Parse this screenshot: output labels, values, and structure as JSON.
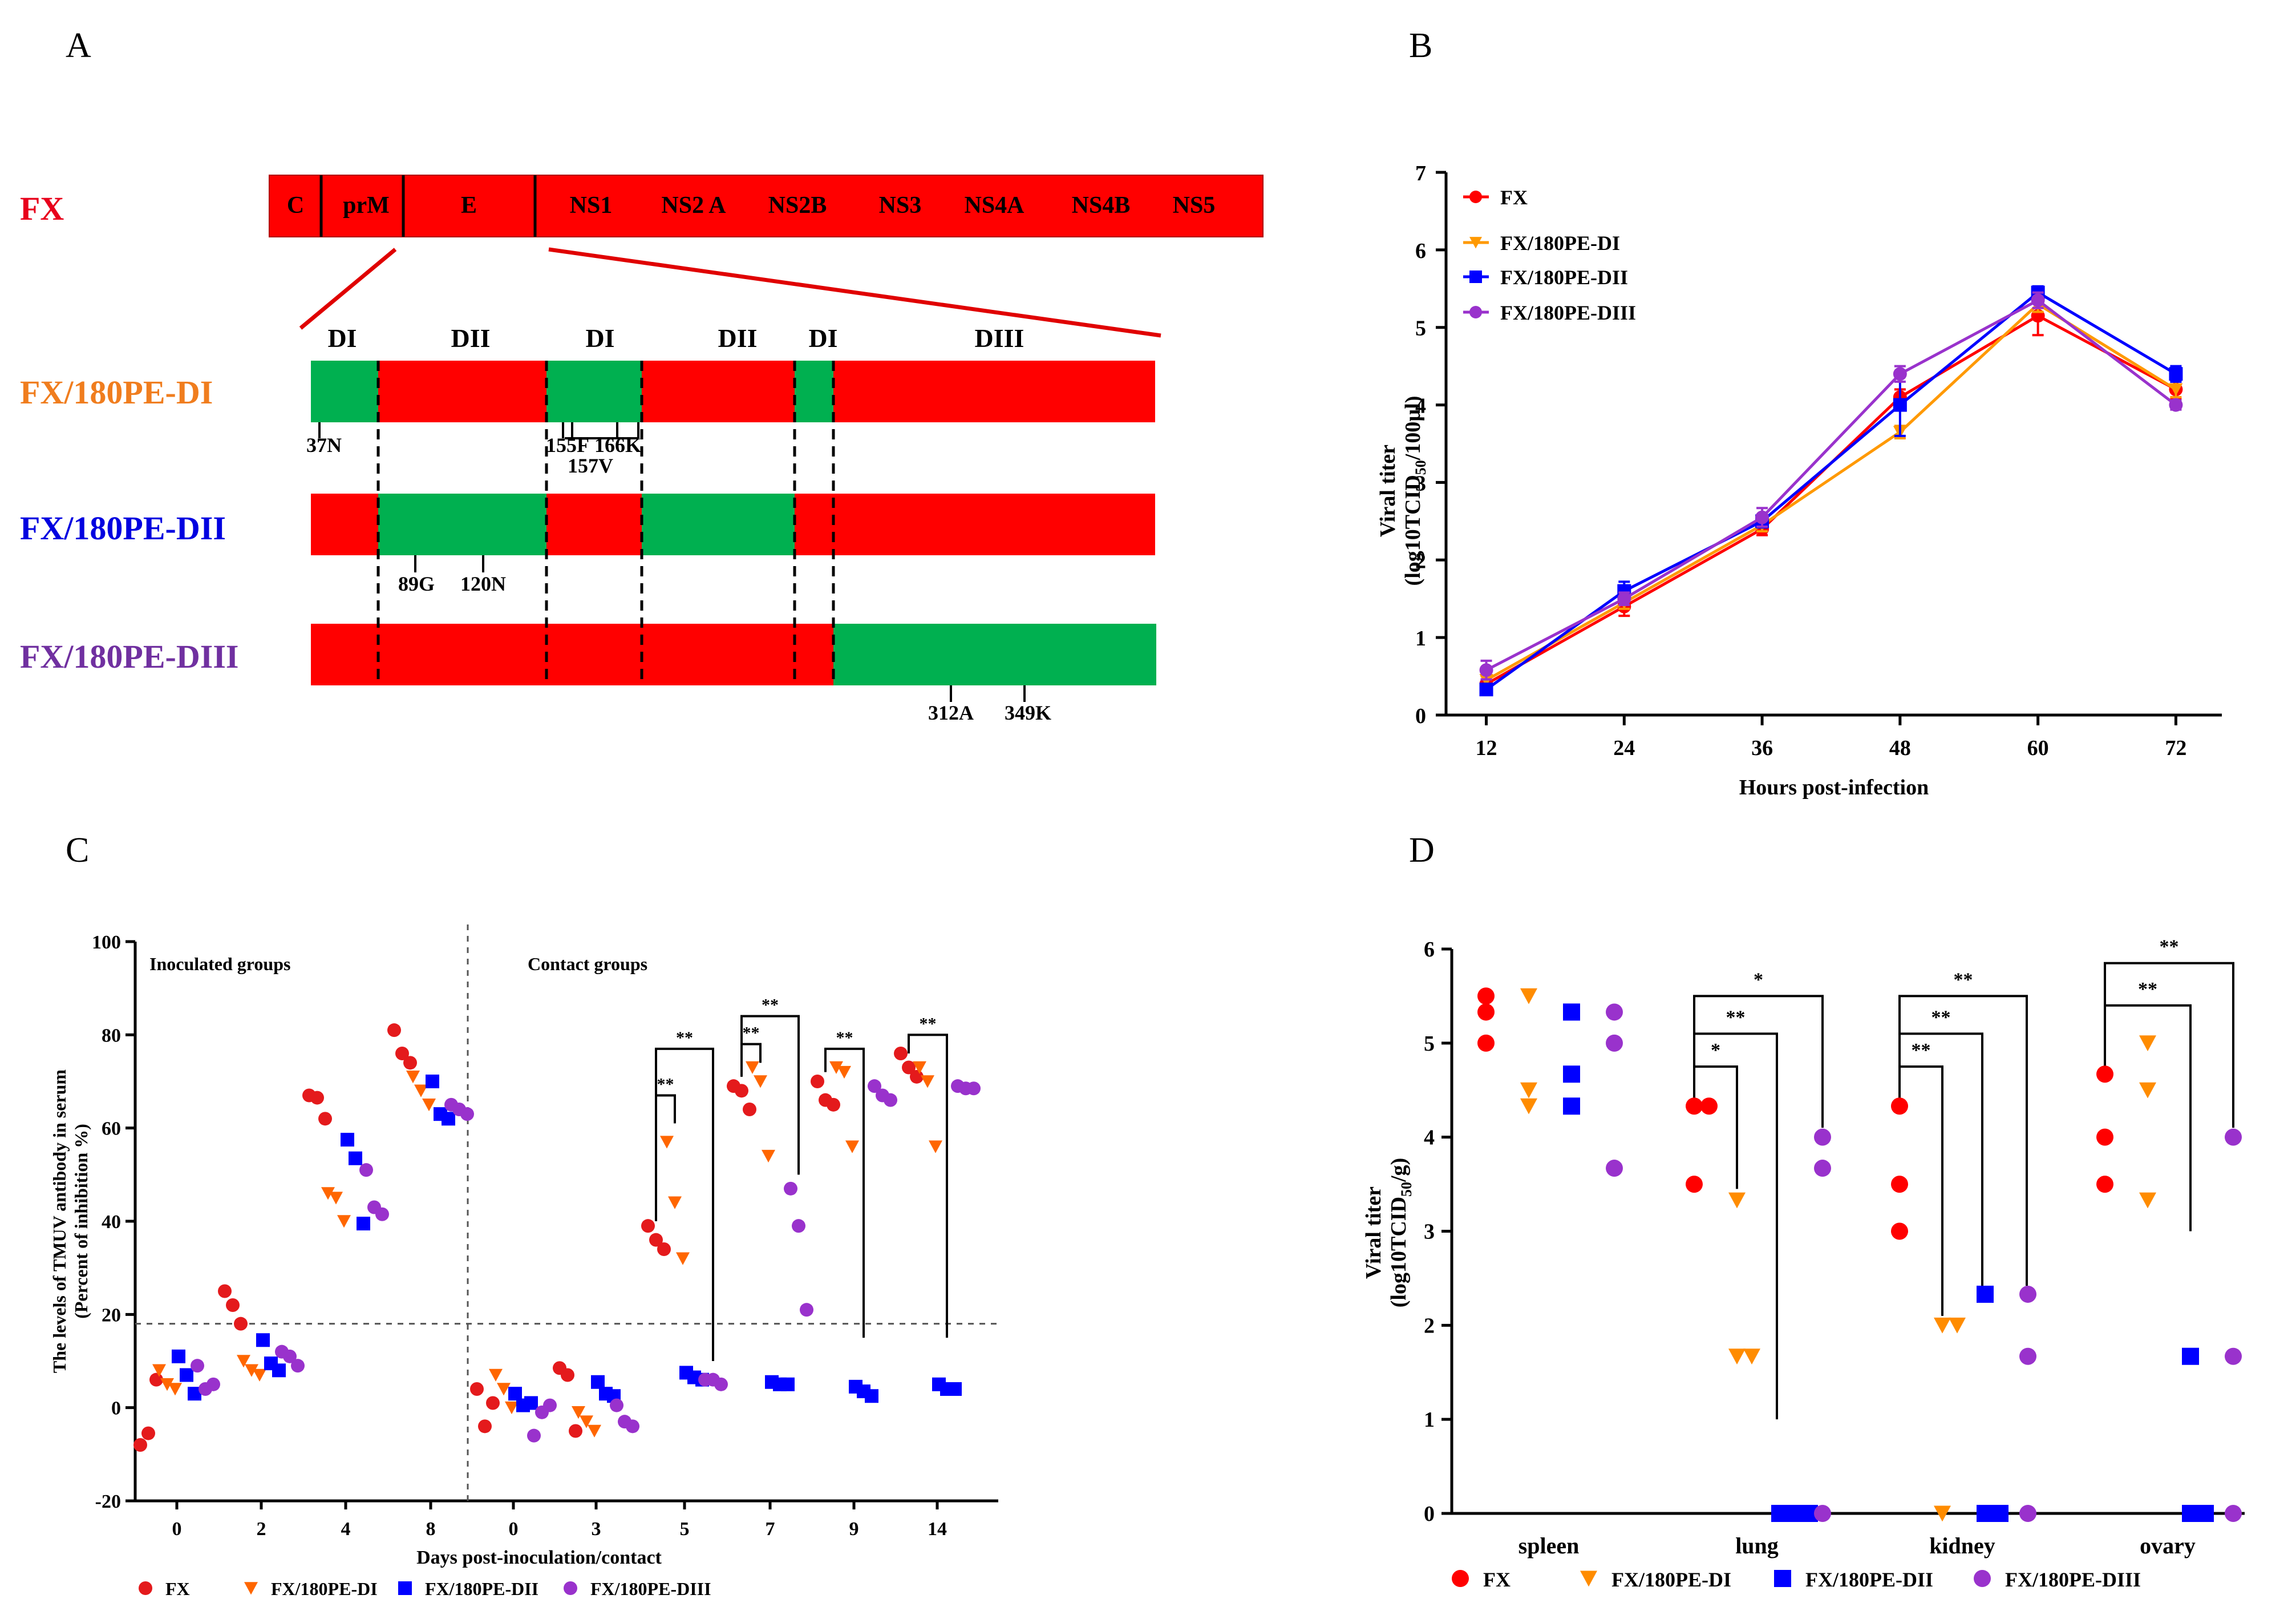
{
  "panel_labels": {
    "a": "A",
    "b": "B",
    "c": "C",
    "d": "D"
  },
  "colors": {
    "red": "#ff0000",
    "green": "#00b050",
    "fx": "#e41a1c",
    "orange": "#ff7f0e",
    "blue": "#0000ff",
    "purple": "#9932cc"
  },
  "panel_a": {
    "fx_label": "FX",
    "genes": [
      "C",
      "prM",
      "E",
      "NS1",
      "NS2 A",
      "NS2B",
      "NS3",
      "NS4A",
      "NS4B",
      "NS5"
    ],
    "domains": [
      "DI",
      "DII",
      "DI",
      "DII",
      "DI",
      "DIII"
    ],
    "construct_labels": [
      "FX/180PE-DI",
      "FX/180PE-DII",
      "FX/180PE-DIII"
    ],
    "mutations_d1": [
      "37N",
      "155F",
      "157V",
      "166K"
    ],
    "mutations_d2": [
      "89G",
      "120N"
    ],
    "mutations_d3": [
      "312A",
      "349K"
    ]
  },
  "chart_data": [
    {
      "panel": "B",
      "type": "line",
      "xlabel": "Hours post-infection",
      "ylabel": "Viral titer (log10TCID50/100µl)",
      "ylabel_line1": "Viral titer",
      "ylabel_line2_pre": "(log10TCID",
      "ylabel_line2_sub": "50",
      "ylabel_line2_post": "/100µl)",
      "x": [
        12,
        24,
        36,
        48,
        60,
        72
      ],
      "x_ticks": [
        "12",
        "24",
        "36",
        "48",
        "60",
        "72"
      ],
      "y_ticks": [
        "0",
        "1",
        "2",
        "3",
        "4",
        "5",
        "6",
        "7"
      ],
      "ylim": [
        0,
        7
      ],
      "series": [
        {
          "name": "FX",
          "color": "#ff0000",
          "marker": "circle",
          "values": [
            0.4,
            1.4,
            2.4,
            4.1,
            5.15,
            4.2
          ],
          "err": [
            0.06,
            0.12,
            0.08,
            0.1,
            0.25,
            0.12
          ]
        },
        {
          "name": "FX/180PE-DI",
          "color": "#ff9900",
          "marker": "triangle",
          "values": [
            0.45,
            1.45,
            2.45,
            3.65,
            5.3,
            4.2
          ],
          "err": [
            0.05,
            0.08,
            0.08,
            0.08,
            0.1,
            0.1
          ]
        },
        {
          "name": "FX/180PE-DII",
          "color": "#0000ff",
          "marker": "square",
          "values": [
            0.33,
            1.6,
            2.5,
            4.0,
            5.45,
            4.4
          ],
          "err": [
            0.04,
            0.12,
            0.08,
            0.4,
            0.08,
            0.1
          ]
        },
        {
          "name": "FX/180PE-DIII",
          "color": "#9932cc",
          "marker": "circle",
          "values": [
            0.58,
            1.5,
            2.55,
            4.4,
            5.35,
            4.0
          ],
          "err": [
            0.12,
            0.08,
            0.12,
            0.1,
            0.1,
            0.06
          ]
        }
      ]
    },
    {
      "panel": "C",
      "type": "scatter",
      "ylabel": "The levels of TMUV antibody in serum (Percent of inhibition %)",
      "ylabel_line1": "The levels of TMUV antibody in serum",
      "ylabel_line2": "(Percent of inhibition %)",
      "xlabel": "Days post-inoculation/contact",
      "ylim": [
        -20,
        100
      ],
      "y_ticks": [
        "-20",
        "0",
        "20",
        "40",
        "60",
        "80",
        "100"
      ],
      "group_labels": [
        "Inoculated groups",
        "Contact groups"
      ],
      "days": [
        "0",
        "2",
        "4",
        "8",
        "0",
        "3",
        "5",
        "7",
        "9",
        "14"
      ],
      "threshold": 18,
      "series": [
        {
          "name": "FX",
          "color": "#e41a1c",
          "marker": "circle",
          "points": [
            [
              0,
              -8
            ],
            [
              0,
              -5.5
            ],
            [
              0,
              6
            ],
            [
              1,
              25
            ],
            [
              1,
              22
            ],
            [
              1,
              18
            ],
            [
              2,
              67
            ],
            [
              2,
              66.5
            ],
            [
              2,
              62
            ],
            [
              3,
              81
            ],
            [
              3,
              76
            ],
            [
              3,
              74
            ],
            [
              4,
              4
            ],
            [
              4,
              -4
            ],
            [
              4,
              1
            ],
            [
              5,
              8.5
            ],
            [
              5,
              7
            ],
            [
              5,
              -5
            ],
            [
              6,
              39
            ],
            [
              6,
              36
            ],
            [
              6,
              34
            ],
            [
              7,
              69
            ],
            [
              7,
              68
            ],
            [
              7,
              64
            ],
            [
              8,
              70
            ],
            [
              8,
              66
            ],
            [
              8,
              65
            ],
            [
              9,
              76
            ],
            [
              9,
              73
            ],
            [
              9,
              71
            ]
          ]
        },
        {
          "name": "FX/180PE-DI",
          "color": "#ff6600",
          "marker": "triangle",
          "points": [
            [
              0,
              8
            ],
            [
              0,
              5
            ],
            [
              0,
              4
            ],
            [
              1,
              10
            ],
            [
              1,
              8
            ],
            [
              1,
              7
            ],
            [
              2,
              46
            ],
            [
              2,
              45
            ],
            [
              2,
              40
            ],
            [
              3,
              71
            ],
            [
              3,
              68
            ],
            [
              3,
              65
            ],
            [
              4,
              7
            ],
            [
              4,
              4
            ],
            [
              4,
              0
            ],
            [
              5,
              -1
            ],
            [
              5,
              -3
            ],
            [
              5,
              -5
            ],
            [
              6,
              57
            ],
            [
              6,
              44
            ],
            [
              6,
              32
            ],
            [
              7,
              73
            ],
            [
              7,
              70
            ],
            [
              7,
              54
            ],
            [
              8,
              73
            ],
            [
              8,
              72
            ],
            [
              8,
              56
            ],
            [
              9,
              73
            ],
            [
              9,
              70
            ],
            [
              9,
              56
            ]
          ]
        },
        {
          "name": "FX/180PE-DII",
          "color": "#0000ff",
          "marker": "square",
          "points": [
            [
              0,
              11
            ],
            [
              0,
              7
            ],
            [
              0,
              3
            ],
            [
              1,
              14.5
            ],
            [
              1,
              9.5
            ],
            [
              1,
              8
            ],
            [
              2,
              57.5
            ],
            [
              2,
              53.5
            ],
            [
              2,
              39.5
            ],
            [
              3,
              70
            ],
            [
              3,
              63
            ],
            [
              3,
              62
            ],
            [
              4,
              3
            ],
            [
              4,
              0.5
            ],
            [
              4,
              1
            ],
            [
              5,
              5.5
            ],
            [
              5,
              3
            ],
            [
              5,
              2.5
            ],
            [
              6,
              7.5
            ],
            [
              6,
              6.5
            ],
            [
              6,
              6
            ],
            [
              7,
              5.5
            ],
            [
              7,
              5
            ],
            [
              7,
              5
            ],
            [
              8,
              4.5
            ],
            [
              8,
              3.5
            ],
            [
              8,
              2.5
            ],
            [
              9,
              5
            ],
            [
              9,
              4
            ],
            [
              9,
              4
            ]
          ]
        },
        {
          "name": "FX/180PE-DIII",
          "color": "#9932cc",
          "marker": "circle",
          "points": [
            [
              0,
              9
            ],
            [
              0,
              4
            ],
            [
              0,
              5
            ],
            [
              1,
              12
            ],
            [
              1,
              11
            ],
            [
              1,
              9
            ],
            [
              2,
              51
            ],
            [
              2,
              43
            ],
            [
              2,
              41.5
            ],
            [
              3,
              65
            ],
            [
              3,
              64
            ],
            [
              3,
              63
            ],
            [
              4,
              -6
            ],
            [
              4,
              -1
            ],
            [
              4,
              0.5
            ],
            [
              5,
              0.5
            ],
            [
              5,
              -3
            ],
            [
              5,
              -4
            ],
            [
              6,
              6
            ],
            [
              6,
              6
            ],
            [
              6,
              5
            ],
            [
              7,
              47
            ],
            [
              7,
              39
            ],
            [
              7,
              21
            ],
            [
              8,
              69
            ],
            [
              8,
              67
            ],
            [
              8,
              66
            ],
            [
              9,
              69
            ],
            [
              9,
              68.5
            ],
            [
              9,
              68.5
            ]
          ]
        }
      ],
      "significance": [
        {
          "day": "5",
          "labels": [
            "**",
            "**"
          ]
        },
        {
          "day": "7",
          "labels": [
            "**",
            "**"
          ]
        },
        {
          "day": "9",
          "labels": [
            "**"
          ]
        },
        {
          "day": "14",
          "labels": [
            "**"
          ]
        }
      ]
    },
    {
      "panel": "D",
      "type": "scatter",
      "ylabel": "Viral titer (log10TCID50/g)",
      "ylabel_line1": "Viral titer",
      "ylabel_line2_pre": "(log10TCID",
      "ylabel_line2_sub": "50",
      "ylabel_line2_post": "/g)",
      "categories": [
        "spleen",
        "lung",
        "kidney",
        "ovary"
      ],
      "ylim": [
        0,
        6
      ],
      "y_ticks": [
        "0",
        "1",
        "2",
        "3",
        "4",
        "5",
        "6"
      ],
      "series": [
        {
          "name": "FX",
          "color": "#ff0000",
          "marker": "circle",
          "points": [
            [
              0,
              5.5
            ],
            [
              0,
              5.33
            ],
            [
              0,
              5.0
            ],
            [
              1,
              4.33
            ],
            [
              1,
              4.33
            ],
            [
              1,
              3.5
            ],
            [
              2,
              4.33
            ],
            [
              2,
              3.5
            ],
            [
              2,
              3.0
            ],
            [
              3,
              4.67
            ],
            [
              3,
              4.0
            ],
            [
              3,
              3.5
            ]
          ]
        },
        {
          "name": "FX/180PE-DI",
          "color": "#ff8c00",
          "marker": "triangle",
          "points": [
            [
              0,
              5.5
            ],
            [
              0,
              4.5
            ],
            [
              0,
              4.33
            ],
            [
              1,
              3.33
            ],
            [
              1,
              1.67
            ],
            [
              1,
              1.67
            ],
            [
              2,
              2.0
            ],
            [
              2,
              2.0
            ],
            [
              2,
              0
            ],
            [
              3,
              5.0
            ],
            [
              3,
              4.5
            ],
            [
              3,
              3.33
            ]
          ]
        },
        {
          "name": "FX/180PE-DII",
          "color": "#0000ff",
          "marker": "square",
          "points": [
            [
              0,
              5.33
            ],
            [
              0,
              4.67
            ],
            [
              0,
              4.33
            ],
            [
              1,
              0
            ],
            [
              1,
              0
            ],
            [
              1,
              0
            ],
            [
              2,
              2.33
            ],
            [
              2,
              0
            ],
            [
              2,
              0
            ],
            [
              3,
              1.67
            ],
            [
              3,
              0
            ],
            [
              3,
              0
            ]
          ]
        },
        {
          "name": "FX/180PE-DIII",
          "color": "#9932cc",
          "marker": "circle",
          "points": [
            [
              0,
              5.33
            ],
            [
              0,
              5.0
            ],
            [
              0,
              3.67
            ],
            [
              1,
              4.0
            ],
            [
              1,
              3.67
            ],
            [
              1,
              0
            ],
            [
              2,
              2.33
            ],
            [
              2,
              1.67
            ],
            [
              2,
              0
            ],
            [
              3,
              4.0
            ],
            [
              3,
              1.67
            ],
            [
              3,
              0
            ]
          ]
        }
      ],
      "significance": [
        {
          "tissue": "lung",
          "labels": [
            "*",
            "**",
            "*"
          ]
        },
        {
          "tissue": "kidney",
          "labels": [
            "**",
            "**",
            "**"
          ]
        },
        {
          "tissue": "ovary",
          "labels": [
            "**",
            "**"
          ]
        }
      ]
    }
  ]
}
